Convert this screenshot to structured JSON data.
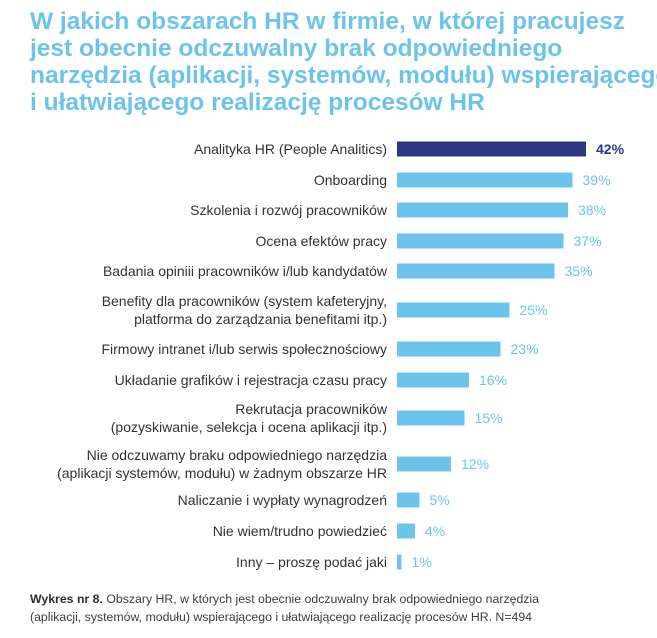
{
  "title_lines": [
    "W jakich obszarach HR w firmie, w której pracujesz",
    "jest obecnie odczuwalny brak odpowiedniego",
    "narzędzia (aplikacji, systemów, modułu) wspierającego",
    "i ułatwiającego realizację procesów HR"
  ],
  "caption": {
    "label": "Wykres nr 8.",
    "line1": " Obszary HR, w których jest obecnie odczuwalny brak odpowiedniego narzędzia",
    "line2": "(aplikacji, systemów, modułu) wspierającego i ułatwiającego realizację procesów HR. N=494"
  },
  "colors": {
    "title": "#6cc4ec",
    "highlight_bar": "#2c3786",
    "bar": "#6cc4ec",
    "label_text": "#333333",
    "highlight_value": "#2c3786",
    "value": "#6cc4ec"
  },
  "chart_data": {
    "type": "bar",
    "orientation": "horizontal",
    "value_suffix": "%",
    "highlight_index": 0,
    "xlim": [
      0,
      42
    ],
    "grid": false,
    "categories": [
      [
        "Analityka HR (People Analitics)"
      ],
      [
        "Onboarding"
      ],
      [
        "Szkolenia i rozwój pracowników"
      ],
      [
        "Ocena efektów pracy"
      ],
      [
        "Badania opiniii pracowników i/lub kandydatów"
      ],
      [
        "Benefity dla pracowników (system kafeteryjny,",
        "platforma do zarządzania benefitami itp.)"
      ],
      [
        "Firmowy intranet i/lub serwis społecznościowy"
      ],
      [
        "Układanie grafików i rejestracja czasu pracy"
      ],
      [
        "Rekrutacja pracowników",
        "(pozyskiwanie, selekcja i ocena aplikacji itp.)"
      ],
      [
        "Nie odczuwamy braku odpowiedniego narzędzia",
        "(aplikacji systemów, modułu) w żadnym obszarze HR"
      ],
      [
        "Naliczanie i wypłaty wynagrodzeń"
      ],
      [
        "Nie wiem/trudno powiedzieć"
      ],
      [
        "Inny – proszę podać jaki"
      ]
    ],
    "values": [
      42,
      39,
      38,
      37,
      35,
      25,
      23,
      16,
      15,
      12,
      5,
      4,
      1
    ]
  }
}
